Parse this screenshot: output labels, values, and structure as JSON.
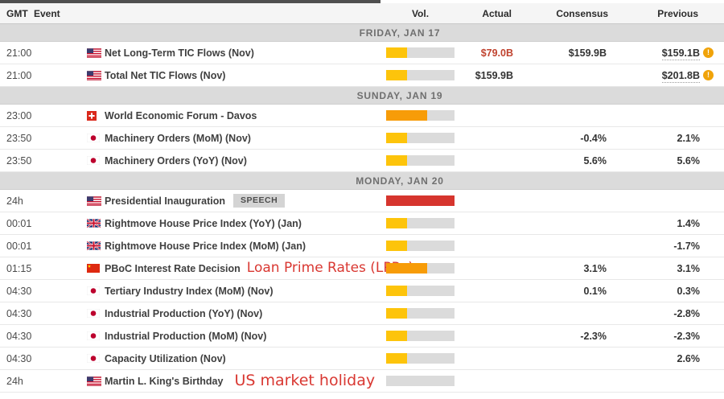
{
  "header": {
    "gmt": "GMT",
    "event": "Event",
    "vol": "Vol.",
    "actual": "Actual",
    "consensus": "Consensus",
    "previous": "Previous"
  },
  "colors": {
    "vol_yellow": "#fdc40b",
    "vol_orange": "#f79c08",
    "vol_red": "#d6352e",
    "vol_track": "#dbdbdb",
    "actual_red": "#c0432f",
    "annotation_red": "#d93832"
  },
  "revision_icon_glyph": "!",
  "sections": [
    {
      "label": "FRIDAY, JAN 17",
      "rows": [
        {
          "time": "21:00",
          "flag": "us",
          "event": "Net Long-Term TIC Flows (Nov)",
          "vol": {
            "pct": 30,
            "color": "vol_yellow"
          },
          "actual": {
            "text": "$79.0B",
            "red": true
          },
          "consensus": "$159.9B",
          "previous": {
            "text": "$159.1B",
            "revised": true
          }
        },
        {
          "time": "21:00",
          "flag": "us",
          "event": "Total Net TIC Flows (Nov)",
          "vol": {
            "pct": 30,
            "color": "vol_yellow"
          },
          "actual": {
            "text": "$159.9B",
            "red": false
          },
          "consensus": "",
          "previous": {
            "text": "$201.8B",
            "revised": true
          }
        }
      ]
    },
    {
      "label": "SUNDAY, JAN 19",
      "rows": [
        {
          "time": "23:00",
          "flag": "ch",
          "event": "World Economic Forum - Davos",
          "vol": {
            "pct": 60,
            "color": "vol_orange"
          }
        },
        {
          "time": "23:50",
          "flag": "jp",
          "event": "Machinery Orders (MoM) (Nov)",
          "vol": {
            "pct": 30,
            "color": "vol_yellow"
          },
          "consensus": "-0.4%",
          "previous": {
            "text": "2.1%",
            "revised": false
          }
        },
        {
          "time": "23:50",
          "flag": "jp",
          "event": "Machinery Orders (YoY) (Nov)",
          "vol": {
            "pct": 30,
            "color": "vol_yellow"
          },
          "consensus": "5.6%",
          "previous": {
            "text": "5.6%",
            "revised": false
          }
        }
      ]
    },
    {
      "label": "MONDAY, JAN 20",
      "rows": [
        {
          "time": "24h",
          "flag": "us",
          "event": "Presidential Inauguration",
          "badge": "SPEECH",
          "vol": {
            "pct": 100,
            "color": "vol_red"
          }
        },
        {
          "time": "00:01",
          "flag": "gb",
          "event": "Rightmove House Price Index (YoY) (Jan)",
          "vol": {
            "pct": 30,
            "color": "vol_yellow"
          },
          "previous": {
            "text": "1.4%",
            "revised": false
          }
        },
        {
          "time": "00:01",
          "flag": "gb",
          "event": "Rightmove House Price Index (MoM) (Jan)",
          "vol": {
            "pct": 30,
            "color": "vol_yellow"
          },
          "previous": {
            "text": "-1.7%",
            "revised": false
          }
        },
        {
          "time": "01:15",
          "flag": "cn",
          "event": "PBoC Interest Rate Decision",
          "annotation": "Loan Prime Rates (LPRs)",
          "vol": {
            "pct": 60,
            "color": "vol_orange"
          },
          "consensus": "3.1%",
          "previous": {
            "text": "3.1%",
            "revised": false
          }
        },
        {
          "time": "04:30",
          "flag": "jp",
          "event": "Tertiary Industry Index (MoM) (Nov)",
          "vol": {
            "pct": 30,
            "color": "vol_yellow"
          },
          "consensus": "0.1%",
          "previous": {
            "text": "0.3%",
            "revised": false
          }
        },
        {
          "time": "04:30",
          "flag": "jp",
          "event": "Industrial Production (YoY) (Nov)",
          "vol": {
            "pct": 30,
            "color": "vol_yellow"
          },
          "previous": {
            "text": "-2.8%",
            "revised": false
          }
        },
        {
          "time": "04:30",
          "flag": "jp",
          "event": "Industrial Production (MoM) (Nov)",
          "vol": {
            "pct": 30,
            "color": "vol_yellow"
          },
          "consensus": "-2.3%",
          "previous": {
            "text": "-2.3%",
            "revised": false
          }
        },
        {
          "time": "04:30",
          "flag": "jp",
          "event": "Capacity Utilization (Nov)",
          "vol": {
            "pct": 30,
            "color": "vol_yellow"
          },
          "previous": {
            "text": "2.6%",
            "revised": false
          }
        },
        {
          "time": "24h",
          "flag": "us",
          "event": "Martin L. King's Birthday",
          "annotation": "US market holiday",
          "annotation_big": true,
          "vol": {
            "pct": 0,
            "color": "vol_yellow"
          }
        }
      ]
    }
  ]
}
